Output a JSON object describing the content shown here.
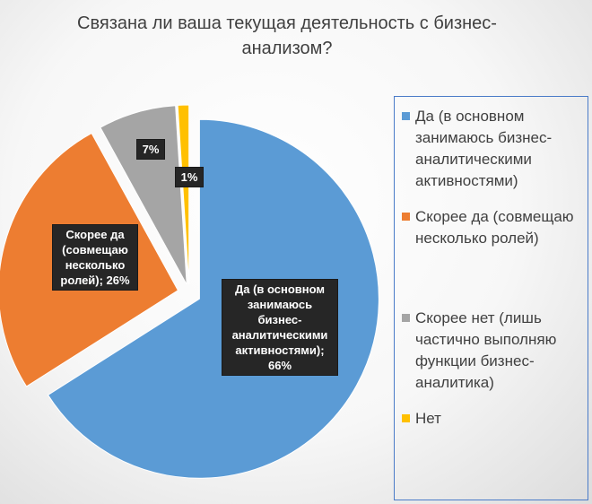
{
  "chart_data": {
    "type": "pie",
    "title": "Связана ли ваша текущая деятельность с бизнес-анализом?",
    "categories": [
      "Да (в основном занимаюсь бизнес-аналитическими активностями)",
      "Скорее да (совмещаю несколько ролей)",
      "Скорее нет (лишь частично выполняю функции бизнес-аналитика)",
      "Нет"
    ],
    "values": [
      66,
      26,
      7,
      1
    ],
    "unit": "%",
    "colors": [
      "#5b9bd5",
      "#ed7d31",
      "#a5a5a5",
      "#ffc000"
    ],
    "exploded": true,
    "legend_position": "right",
    "data_labels": [
      "Да (в основном занимаюсь бизнес-аналитическими активностями); 66%",
      "Скорее да (совмещаю несколько ролей); 26%",
      "7%",
      "1%"
    ]
  },
  "legend": {
    "items": [
      "Да (в основном занимаюсь бизнес-аналитическими активностями)",
      "Скорее да (совмещаю несколько ролей)",
      "Скорее нет (лишь частично выполняю функции бизнес-аналитика)",
      "Нет"
    ]
  }
}
